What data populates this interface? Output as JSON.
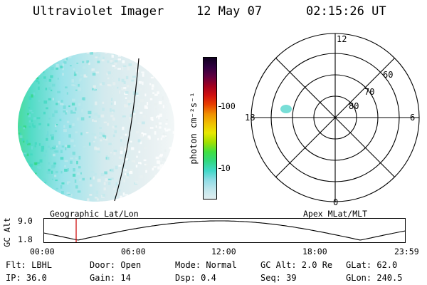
{
  "header": {
    "instrument": "Ultraviolet Imager",
    "date": "12 May 07",
    "time": "02:15:26 UT"
  },
  "colorbar": {
    "unit_label": "photon cm⁻²s⁻¹",
    "ticks": [
      "100",
      "10"
    ],
    "colors": [
      "#e0eef0",
      "#bfe6ec",
      "#8fdce6",
      "#40d8c8",
      "#30d880",
      "#40e040",
      "#a0e000",
      "#e8e800",
      "#f0c000",
      "#f09000",
      "#e84000",
      "#d01010",
      "#a00020",
      "#600040",
      "#300040",
      "#100020"
    ]
  },
  "polar": {
    "mlt_labels": {
      "top": "12",
      "left": "18",
      "right": "6",
      "bottom": "0"
    },
    "mlat_labels": [
      "60",
      "70",
      "80"
    ]
  },
  "strip": {
    "ylabel": "GC Alt",
    "ytick_top": "9.0",
    "ytick_bottom": "1.8",
    "left_title": "Geographic Lat/Lon",
    "right_title": "Apex MLat/MLT",
    "time_ticks": [
      "00:00",
      "06:00",
      "12:00",
      "18:00",
      "23:59"
    ],
    "marker_color": "#cc0000"
  },
  "info": {
    "flt": "Flt: LBHL",
    "ip": "IP: 36.0",
    "door": "Door: Open",
    "gain": "Gain: 14",
    "mode": "Mode: Normal",
    "dsp": "Dsp:    0.4",
    "gc_alt": "GC Alt: 2.0 Re",
    "seq": "Seq: 39",
    "glat": "GLat: 62.0",
    "glon": "GLon: 240.5"
  }
}
